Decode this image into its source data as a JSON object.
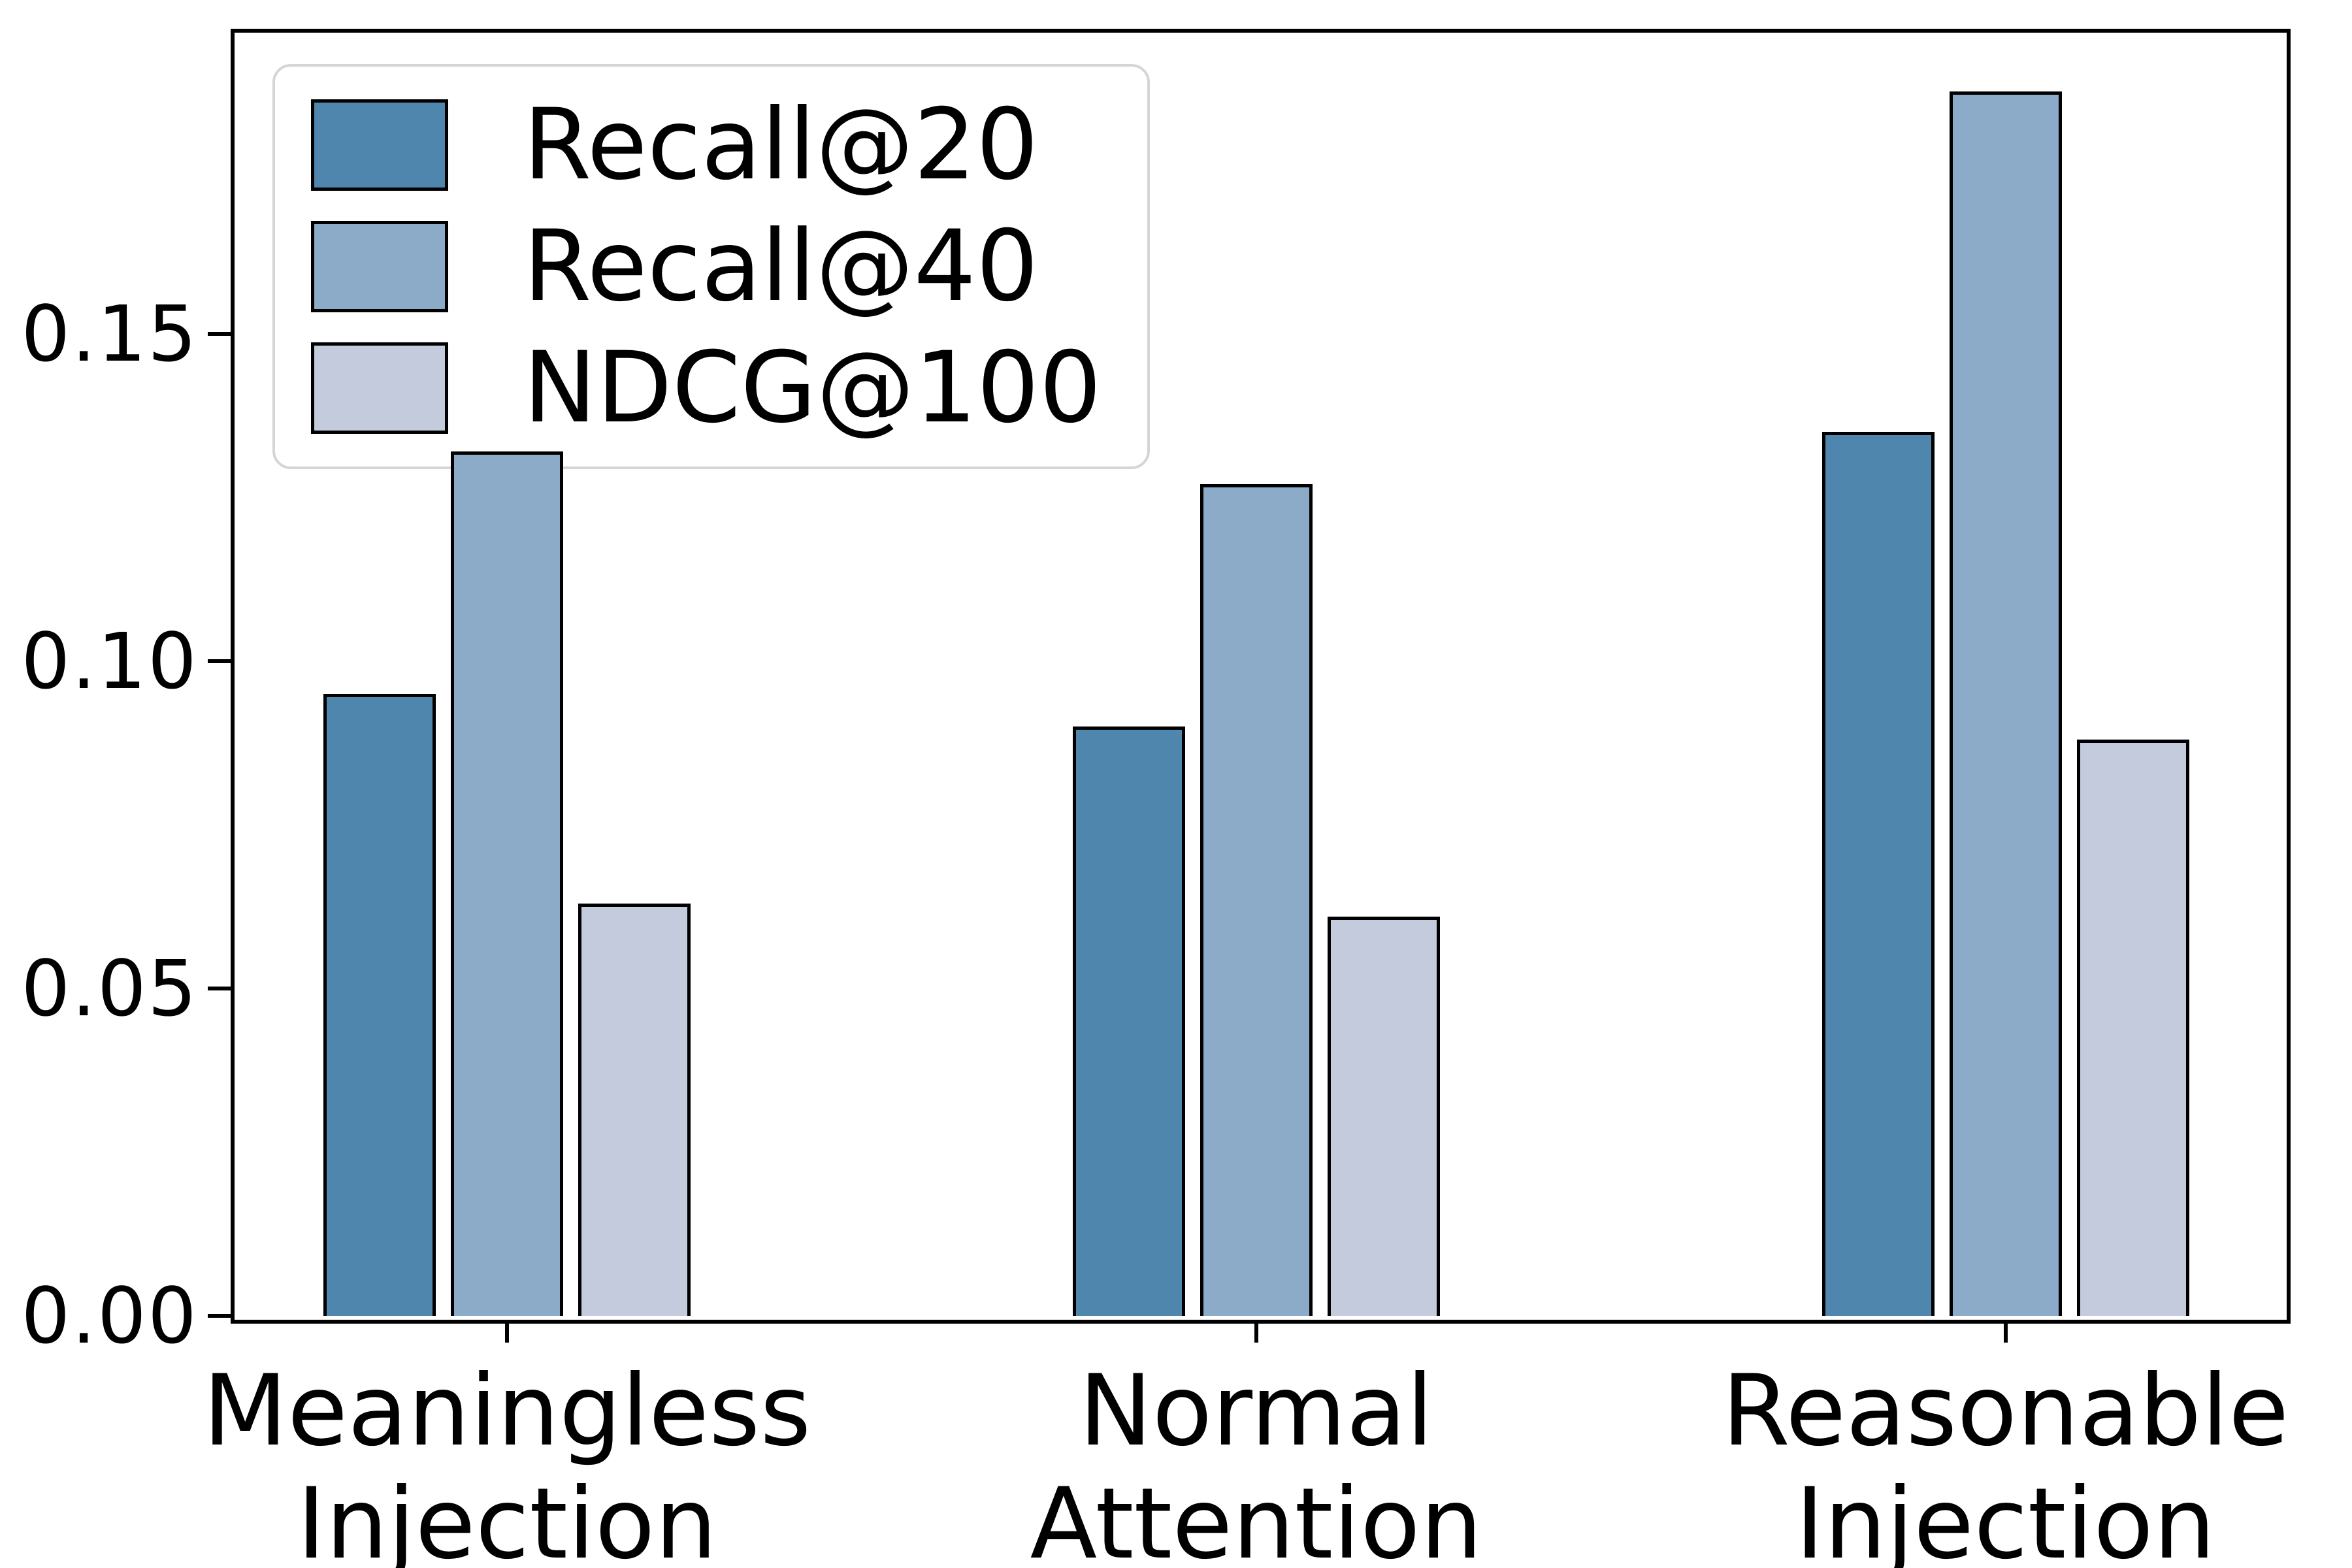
{
  "chart_data": {
    "type": "bar",
    "categories": [
      "Meaningless\nInjection",
      "Normal\nAttention",
      "Reasonable\nInjection"
    ],
    "series": [
      {
        "name": "Recall@20",
        "color": "#4e86ae",
        "values": [
          0.095,
          0.09,
          0.135
        ]
      },
      {
        "name": "Recall@40",
        "color": "#8babc8",
        "values": [
          0.132,
          0.127,
          0.187
        ]
      },
      {
        "name": "NDCG@100",
        "color": "#c3cbdd",
        "values": [
          0.063,
          0.061,
          0.088
        ]
      }
    ],
    "title": "",
    "xlabel": "",
    "ylabel": "",
    "ylim": [
      0,
      0.1966
    ],
    "yticks": [
      0.0,
      0.05,
      0.1,
      0.15
    ],
    "ytick_labels": [
      "0.00",
      "0.05",
      "0.10",
      "0.15"
    ],
    "legend_position": "upper left",
    "grid": false,
    "bar_edge_color": "#000000",
    "background_color": "#ffffff"
  }
}
